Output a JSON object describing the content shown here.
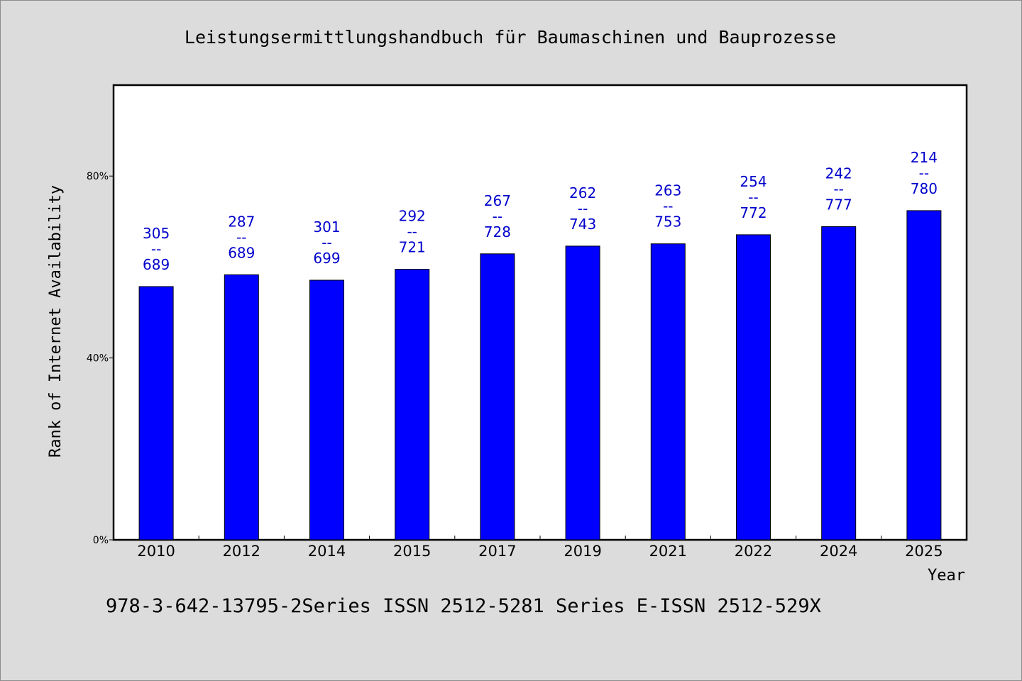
{
  "chart_data": {
    "type": "bar",
    "title": "Leistungsermittlungshandbuch für Baumaschinen und Bauprozesse",
    "xlabel": "Year",
    "ylabel": "Rank of Internet Availability",
    "footer": "978-3-642-13795-2Series ISSN 2512-5281 Series E-ISSN 2512-529X",
    "categories": [
      "2010",
      "2012",
      "2014",
      "2015",
      "2017",
      "2019",
      "2021",
      "2022",
      "2024",
      "2025"
    ],
    "values": [
      55.7,
      58.3,
      57.1,
      59.5,
      62.9,
      64.6,
      65.1,
      67.1,
      68.9,
      72.4
    ],
    "value_unit": "%",
    "ylim": [
      0,
      100
    ],
    "yticks": [
      0,
      40,
      80
    ],
    "ytick_labels": [
      "0%",
      "40%",
      "80%"
    ],
    "bar_labels": [
      {
        "top": "305",
        "sep": "--",
        "bottom": "689"
      },
      {
        "top": "287",
        "sep": "--",
        "bottom": "689"
      },
      {
        "top": "301",
        "sep": "--",
        "bottom": "699"
      },
      {
        "top": "292",
        "sep": "--",
        "bottom": "721"
      },
      {
        "top": "267",
        "sep": "--",
        "bottom": "728"
      },
      {
        "top": "262",
        "sep": "--",
        "bottom": "743"
      },
      {
        "top": "263",
        "sep": "--",
        "bottom": "753"
      },
      {
        "top": "254",
        "sep": "--",
        "bottom": "772"
      },
      {
        "top": "242",
        "sep": "--",
        "bottom": "777"
      },
      {
        "top": "214",
        "sep": "--",
        "bottom": "780"
      }
    ],
    "grid": false,
    "legend": "none",
    "colors": {
      "bar": "#0000ff",
      "bar_label": "#0000cc",
      "background": "#dcdcdc",
      "plot_background": "#ffffff"
    }
  }
}
